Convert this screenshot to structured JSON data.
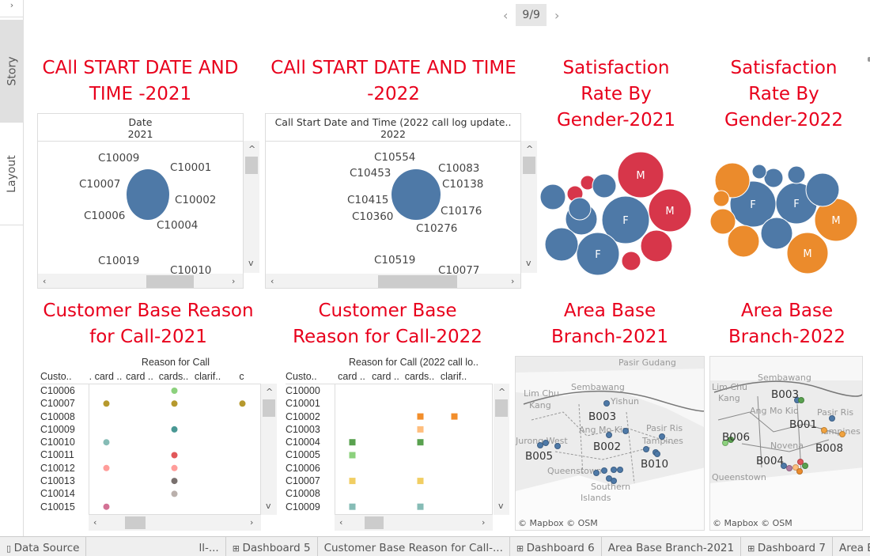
{
  "sidebar": {
    "expand_icon": "chevron-right-icon",
    "tabs": [
      {
        "label": "Story"
      },
      {
        "label": "Layout"
      }
    ]
  },
  "navigator": {
    "page": "9/9",
    "prev_icon": "chevron-left-icon",
    "next_icon": "chevron-right-icon"
  },
  "colors": {
    "title": "#e8001c",
    "blue": "#4e79a7",
    "red": "#d7364a",
    "orange": "#eb8b2c"
  },
  "panels": {
    "call_2021": {
      "title_lines": [
        "CAll START DATE AND",
        "TIME -2021"
      ],
      "header": [
        "Date",
        "2021"
      ],
      "labels": [
        "C10009",
        "C10001",
        "C10007",
        "C10002",
        "C10006",
        "C10004",
        "C10019",
        "C10010"
      ]
    },
    "call_2022": {
      "title_lines": [
        "CAll START DATE AND TIME",
        "-2022"
      ],
      "header": [
        "Call Start Date and Time (2022 call log update..",
        "2022"
      ],
      "labels": [
        "C10554",
        "C10453",
        "C10083",
        "C10138",
        "C10415",
        "C10176",
        "C10360",
        "C10276",
        "C10519",
        "C10077"
      ]
    },
    "gender_2021": {
      "title_lines": [
        "Satisfaction",
        "Rate By",
        "Gender-2021"
      ],
      "bubble_labels": [
        "M",
        "M",
        "F",
        "F"
      ]
    },
    "gender_2022": {
      "title_lines": [
        "Satisfaction",
        "Rate By",
        "Gender-2022"
      ],
      "bubble_labels": [
        "F",
        "F",
        "M",
        "M"
      ]
    },
    "reason_2021": {
      "title_lines": [
        "Customer Base Reason",
        "for Call-2021"
      ],
      "header": "Reason for Call",
      "row_header": "Custo..",
      "columns": [
        ". card ..",
        "card ..",
        "cards..",
        "clarif..",
        "c"
      ],
      "rows": [
        "C10006",
        "C10007",
        "C10008",
        "C10009",
        "C10010",
        "C10011",
        "C10012",
        "C10013",
        "C10014",
        "C10015"
      ]
    },
    "reason_2022": {
      "title_lines": [
        "Customer Base",
        "Reason for Call-2022"
      ],
      "header": "Reason for Call (2022 call lo..",
      "row_header": "Custo..",
      "columns": [
        "card ..",
        "card ..",
        "cards..",
        "clarif.."
      ],
      "rows": [
        "C10000",
        "C10001",
        "C10002",
        "C10003",
        "C10004",
        "C10005",
        "C10006",
        "C10007",
        "C10008",
        "C10009"
      ]
    },
    "area_2021": {
      "title_lines": [
        "Area Base",
        "Branch-2021"
      ],
      "places": [
        "Pasir Gudang",
        "Sembawang",
        "Lim Chu",
        "Kang",
        "Yishun",
        "Ang Mo Kio",
        "Pasir Ris",
        "Tampines",
        "Jurong West",
        "Queenstown",
        "Southern",
        "Islands"
      ],
      "branches": [
        "B003",
        "B002",
        "B005",
        "B010"
      ],
      "credit": "© Mapbox © OSM"
    },
    "area_2022": {
      "title_lines": [
        "Area Base",
        "Branch-2022"
      ],
      "places": [
        "Lim Chu",
        "Kang",
        "Sembawang",
        "Ang Mo Kio",
        "Pasir Ris",
        "Tampines",
        "Novena",
        "Queenstown"
      ],
      "branches": [
        "B003",
        "B001",
        "B006",
        "B008",
        "B004"
      ],
      "credit": "© Mapbox © OSM"
    }
  },
  "sheet_tabs": [
    {
      "label": "Data Source",
      "icon": "database-icon"
    },
    {
      "label": "ll-..."
    },
    {
      "label": "Dashboard 5",
      "icon": "dashboard-icon"
    },
    {
      "label": "Customer Base Reason for Call-..."
    },
    {
      "label": "Dashboard 6",
      "icon": "dashboard-icon"
    },
    {
      "label": "Area Base Branch-2021"
    },
    {
      "label": "Dashboard 7",
      "icon": "dashboard-icon"
    },
    {
      "label": "Area Base Branc"
    }
  ]
}
